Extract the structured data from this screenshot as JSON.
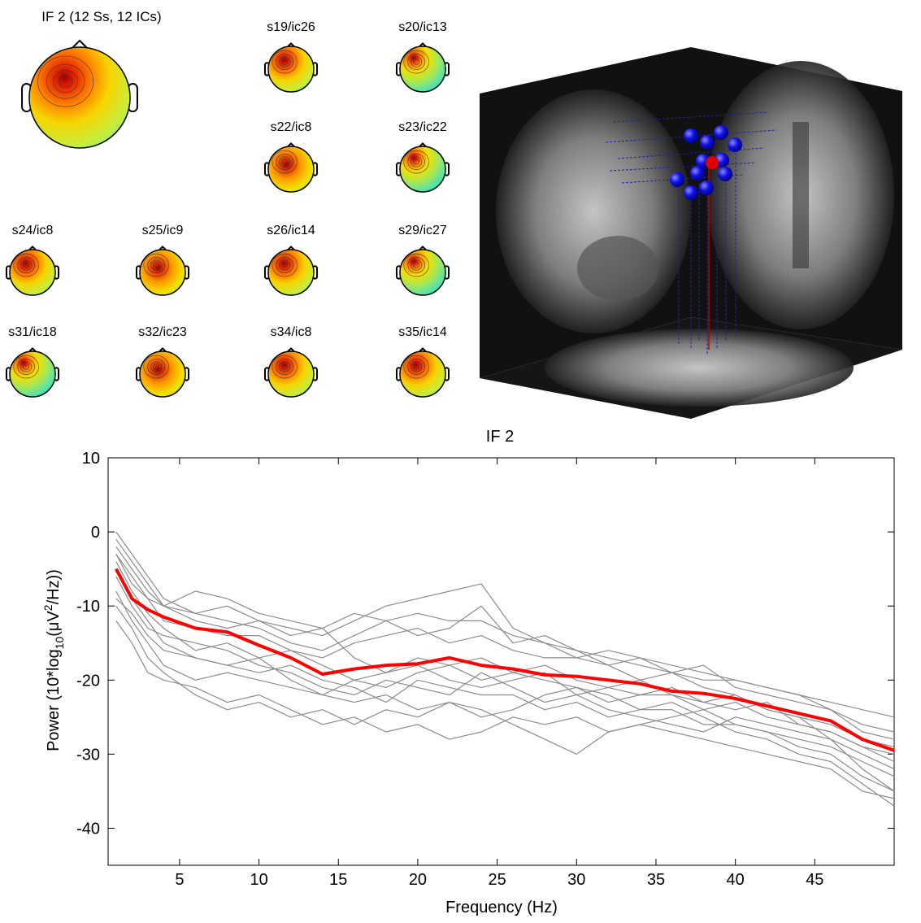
{
  "scalp_maps": {
    "main_title": "IF 2 (12 Ss, 12 ICs)",
    "titles": [
      "s19/ic26",
      "s20/ic13",
      "s22/ic8",
      "s23/ic22",
      "s24/ic8",
      "s25/ic9",
      "s26/ic14",
      "s29/ic27",
      "s31/ic18",
      "s32/ic23",
      "s34/ic8",
      "s35/ic14"
    ]
  },
  "chart_data": {
    "type": "line",
    "title": "IF 2",
    "xlabel": "Frequency (Hz)",
    "ylabel": [
      "Power (10*log",
      "10",
      "(μV",
      "2",
      "/Hz))"
    ],
    "xlim": [
      0.5,
      50
    ],
    "ylim": [
      -45,
      10
    ],
    "xticks": [
      5,
      10,
      15,
      20,
      25,
      30,
      35,
      40,
      45
    ],
    "yticks": [
      10,
      0,
      -10,
      -20,
      -30,
      -40
    ],
    "x": [
      1,
      2,
      3,
      4,
      6,
      8,
      10,
      12,
      14,
      16,
      18,
      20,
      22,
      24,
      26,
      28,
      30,
      32,
      34,
      36,
      38,
      40,
      42,
      44,
      46,
      48,
      50
    ],
    "series": [
      {
        "color": "#8c8c8c",
        "values": [
          0,
          -3,
          -6,
          -9,
          -11,
          -10,
          -12,
          -13,
          -14,
          -12,
          -10,
          -9,
          -8,
          -7,
          -13,
          -15,
          -16,
          -18,
          -17,
          -19,
          -20,
          -20,
          -21,
          -22,
          -24,
          -26,
          -27
        ]
      },
      {
        "color": "#8c8c8c",
        "values": [
          -1,
          -4,
          -7,
          -10,
          -8,
          -9,
          -11,
          -12,
          -13,
          -11,
          -12,
          -14,
          -13,
          -10,
          -15,
          -14,
          -16,
          -17,
          -18,
          -19,
          -18,
          -21,
          -22,
          -23,
          -24,
          -27,
          -28
        ]
      },
      {
        "color": "#8c8c8c",
        "values": [
          -3,
          -6,
          -9,
          -12,
          -13,
          -14,
          -14,
          -16,
          -17,
          -15,
          -14,
          -13,
          -15,
          -14,
          -16,
          -17,
          -17,
          -18,
          -20,
          -19,
          -21,
          -22,
          -24,
          -25,
          -28,
          -32,
          -35
        ]
      },
      {
        "color": "#8c8c8c",
        "values": [
          -4,
          -8,
          -11,
          -13,
          -16,
          -15,
          -17,
          -16,
          -18,
          -20,
          -21,
          -19,
          -18,
          -20,
          -19,
          -18,
          -20,
          -21,
          -22,
          -22,
          -23,
          -24,
          -23,
          -26,
          -27,
          -29,
          -30
        ]
      },
      {
        "color": "#8c8c8c",
        "values": [
          -8,
          -12,
          -15,
          -18,
          -20,
          -19,
          -20,
          -21,
          -22,
          -23,
          -22,
          -24,
          -23,
          -25,
          -24,
          -22,
          -21,
          -22,
          -24,
          -23,
          -25,
          -27,
          -28,
          -30,
          -31,
          -34,
          -37
        ]
      },
      {
        "color": "#8c8c8c",
        "values": [
          -12,
          -15,
          -19,
          -20,
          -21,
          -23,
          -22,
          -24,
          -26,
          -25,
          -27,
          -26,
          -28,
          -27,
          -25,
          -26,
          -25,
          -27,
          -26,
          -27,
          -28,
          -29,
          -30,
          -31,
          -32,
          -35,
          -36
        ]
      },
      {
        "color": "#8c8c8c",
        "values": [
          -10,
          -13,
          -17,
          -19,
          -22,
          -24,
          -23,
          -25,
          -24,
          -26,
          -24,
          -25,
          -23,
          -24,
          -26,
          -28,
          -30,
          -27,
          -26,
          -25,
          -24,
          -26,
          -27,
          -29,
          -30,
          -33,
          -35
        ]
      },
      {
        "color": "#8c8c8c",
        "values": [
          -2,
          -5,
          -8,
          -10,
          -12,
          -13,
          -12,
          -14,
          -13,
          -17,
          -19,
          -18,
          -20,
          -21,
          -20,
          -19,
          -22,
          -24,
          -25,
          -26,
          -27,
          -25,
          -26,
          -27,
          -28,
          -30,
          -32
        ]
      },
      {
        "color": "#8c8c8c",
        "values": [
          -6,
          -10,
          -13,
          -14,
          -15,
          -16,
          -18,
          -19,
          -21,
          -22,
          -20,
          -21,
          -22,
          -19,
          -21,
          -23,
          -22,
          -21,
          -20,
          -22,
          -24,
          -23,
          -25,
          -26,
          -27,
          -29,
          -31
        ]
      },
      {
        "color": "#8c8c8c",
        "values": [
          -9,
          -11,
          -14,
          -16,
          -17,
          -18,
          -19,
          -18,
          -20,
          -21,
          -23,
          -20,
          -21,
          -22,
          -22,
          -24,
          -23,
          -25,
          -24,
          -24,
          -26,
          -26,
          -27,
          -28,
          -29,
          -31,
          -33
        ]
      },
      {
        "color": "#8c8c8c",
        "values": [
          -3,
          -7,
          -9,
          -10,
          -11,
          -12,
          -13,
          -15,
          -16,
          -14,
          -12,
          -11,
          -12,
          -12,
          -14,
          -15,
          -17,
          -16,
          -17,
          -18,
          -19,
          -20,
          -21,
          -22,
          -23,
          -24,
          -25
        ]
      },
      {
        "color": "#8c8c8c",
        "values": [
          -5,
          -9,
          -12,
          -15,
          -17,
          -18,
          -17,
          -20,
          -22,
          -20,
          -19,
          -17,
          -18,
          -17,
          -19,
          -20,
          -21,
          -23,
          -22,
          -21,
          -23,
          -22,
          -24,
          -25,
          -26,
          -28,
          -29
        ]
      },
      {
        "color": "#ff0000",
        "values": [
          -5,
          -9,
          -10.5,
          -11.5,
          -13,
          -13.5,
          -15.3,
          -17,
          -19.2,
          -18.5,
          -18,
          -17.8,
          -17,
          -18,
          -18.5,
          -19.3,
          -19.5,
          -20,
          -20.5,
          -21.5,
          -21.8,
          -22.5,
          -23.5,
          -24.5,
          -25.5,
          -28,
          -29.5
        ]
      }
    ]
  }
}
